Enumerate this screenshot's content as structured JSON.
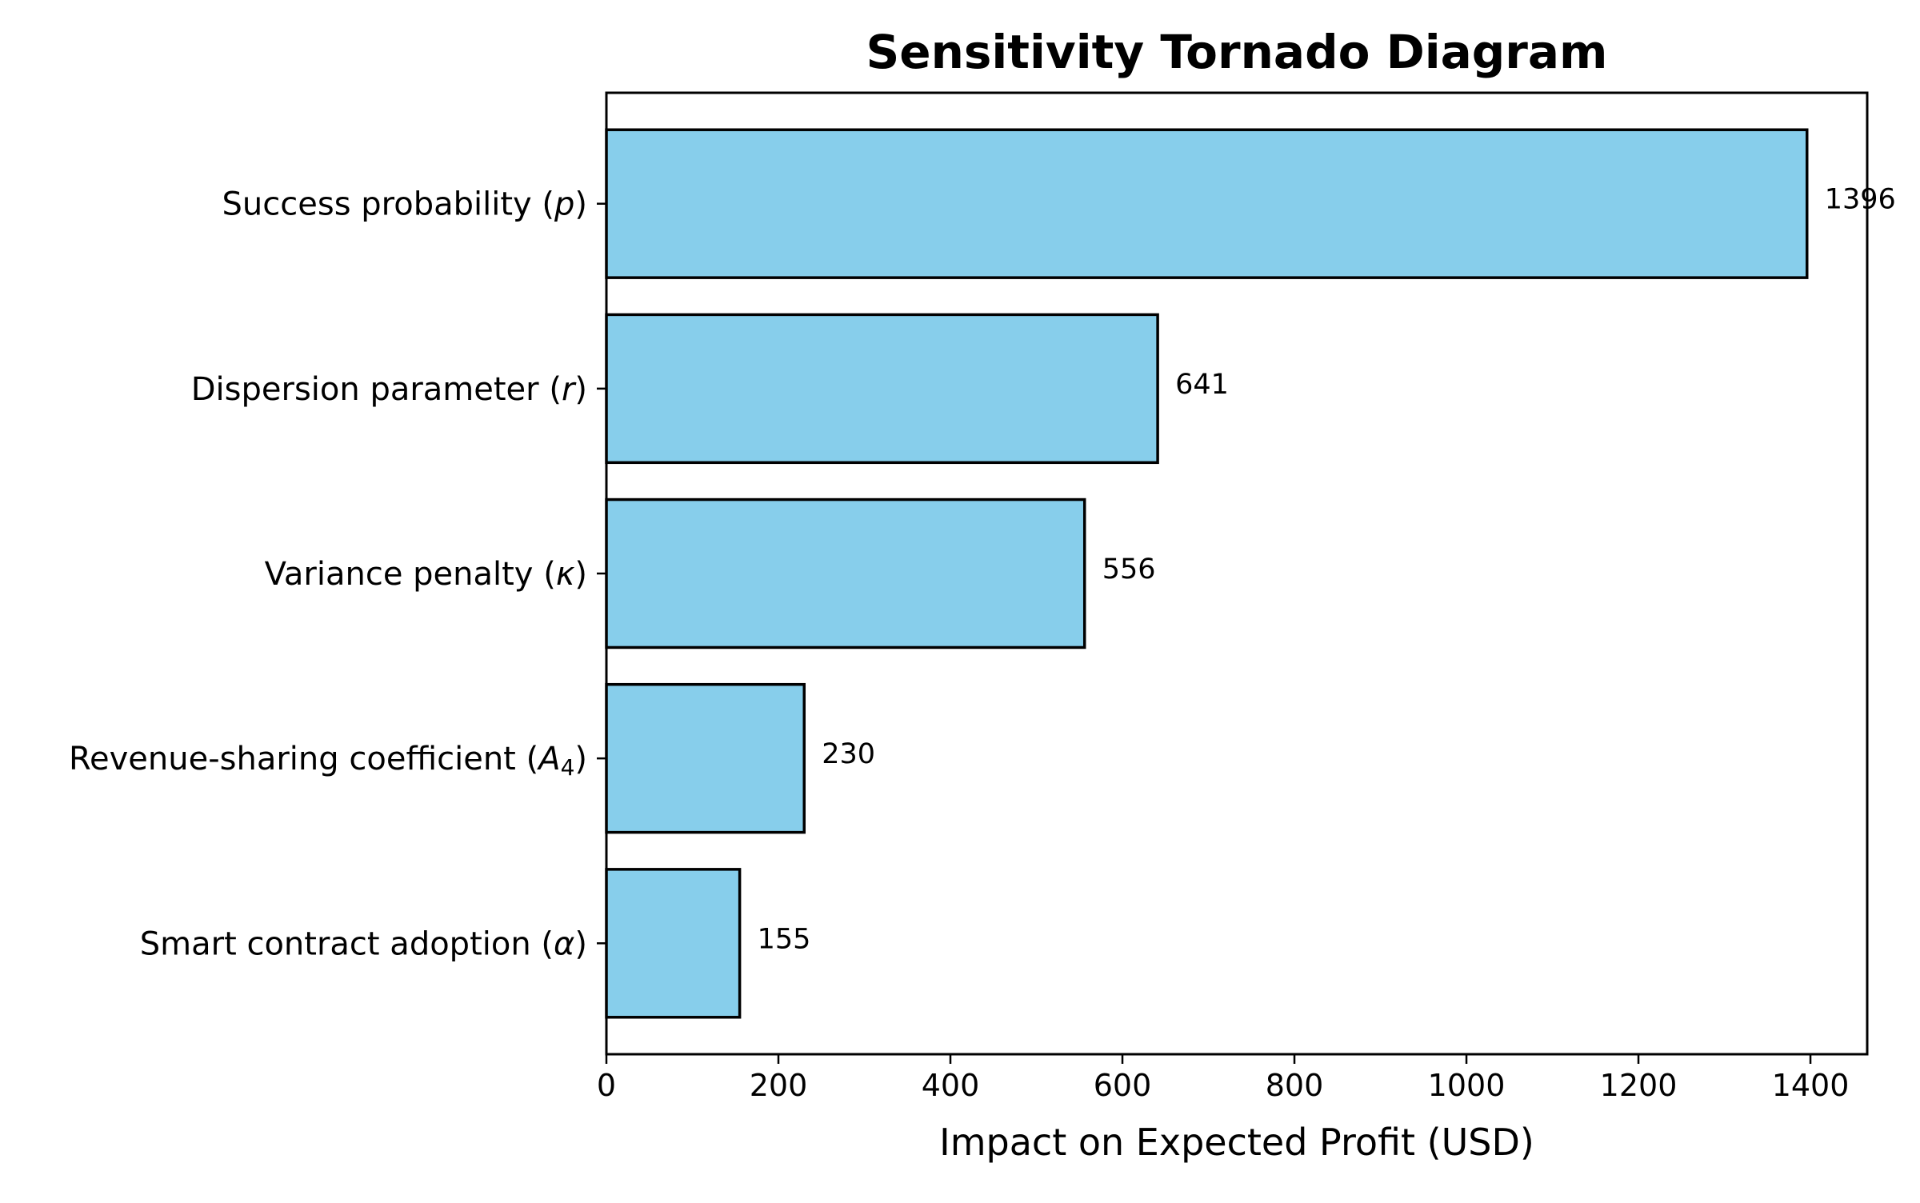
{
  "chart_data": {
    "type": "bar",
    "orientation": "horizontal",
    "title": "Sensitivity Tornado Diagram",
    "xlabel": "Impact on Expected Profit (USD)",
    "ylabel": "",
    "categories": [
      {
        "plain": "Success probability (p)",
        "prefix": "Success probability (",
        "symbol": "p",
        "sub": "",
        "suffix": ")"
      },
      {
        "plain": "Dispersion parameter (r)",
        "prefix": "Dispersion parameter (",
        "symbol": "r",
        "sub": "",
        "suffix": ")"
      },
      {
        "plain": "Variance penalty (κ)",
        "prefix": "Variance penalty (",
        "symbol": "κ",
        "sub": "",
        "suffix": ")"
      },
      {
        "plain": "Revenue-sharing coefficient (A4)",
        "prefix": "Revenue-sharing coefficient (",
        "symbol": "A",
        "sub": "4",
        "suffix": ")"
      },
      {
        "plain": "Smart contract adoption (α)",
        "prefix": "Smart contract adoption (",
        "symbol": "α",
        "sub": "",
        "suffix": ")"
      }
    ],
    "values": [
      1396,
      641,
      556,
      230,
      155
    ],
    "value_labels": [
      "1396",
      "641",
      "556",
      "230",
      "155"
    ],
    "xlim": [
      0,
      1466
    ],
    "xticks": [
      0,
      200,
      400,
      600,
      800,
      1000,
      1200,
      1400
    ],
    "grid": false,
    "legend": false,
    "bar_color": "#87ceeb",
    "edge_color": "#000000"
  }
}
